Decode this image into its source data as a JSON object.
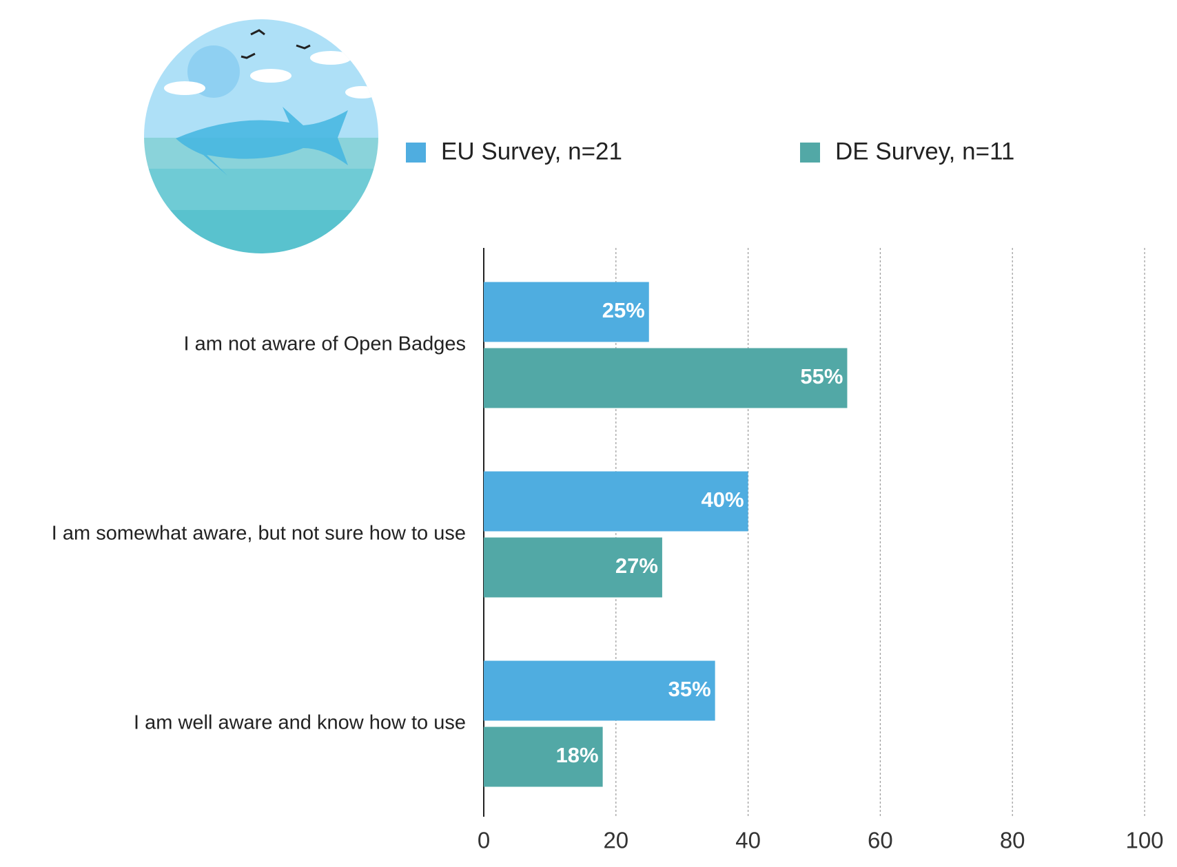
{
  "chart_data": {
    "type": "hbar",
    "categories": [
      "I am not aware of Open Badges",
      "I am somewhat aware, but not sure how to use",
      "I am well aware and know how to use"
    ],
    "series": [
      {
        "name": "EU Survey, n=21",
        "color": "#4fade0",
        "values": [
          25,
          40,
          35
        ],
        "value_labels": [
          "25%",
          "40%",
          "35%"
        ]
      },
      {
        "name": "DE Survey, n=11",
        "color": "#52a8a6",
        "values": [
          55,
          27,
          18
        ],
        "value_labels": [
          "55%",
          "27%",
          "18%"
        ]
      }
    ],
    "xlim": [
      0,
      100
    ],
    "xticks": [
      0,
      20,
      40,
      60,
      80,
      100
    ],
    "grid": true
  }
}
